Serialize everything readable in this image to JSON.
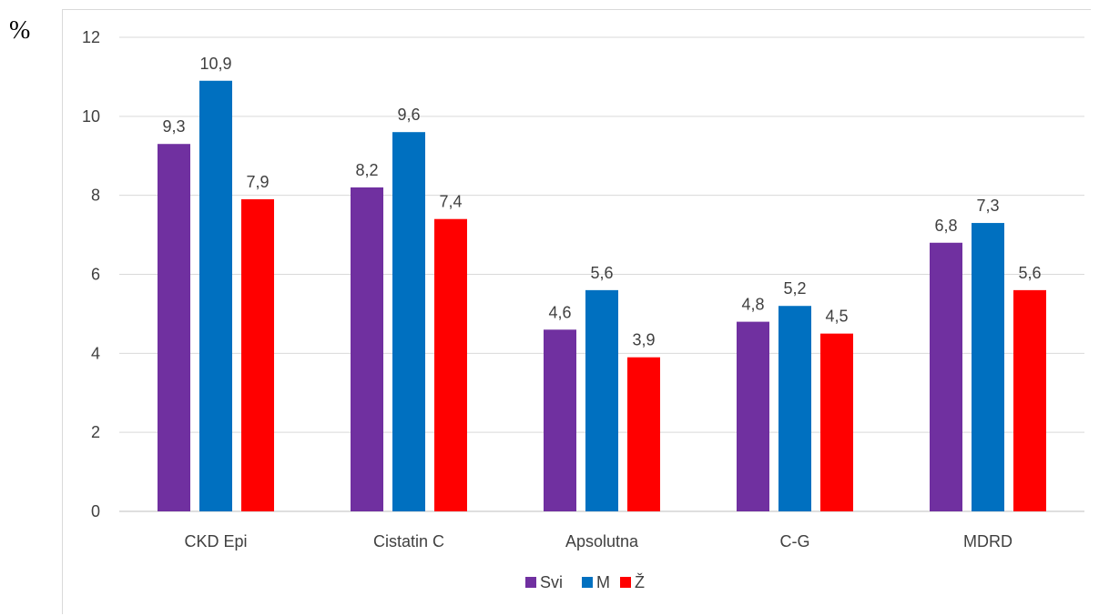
{
  "unit_label": "%",
  "chart_data": {
    "type": "bar",
    "title": "",
    "xlabel": "",
    "ylabel": "%",
    "ylim": [
      0,
      12
    ],
    "yticks": [
      0,
      2,
      4,
      6,
      8,
      10,
      12
    ],
    "grid": true,
    "legend_position": "bottom",
    "categories": [
      "CKD Epi",
      "Cistatin C",
      "Apsolutna",
      "C-G",
      "MDRD"
    ],
    "series": [
      {
        "name": "Svi",
        "color": "#7030a0",
        "values": [
          9.3,
          8.2,
          4.6,
          4.8,
          6.8
        ],
        "labels": [
          "9,3",
          "8,2",
          "4,6",
          "4,8",
          "6,8"
        ]
      },
      {
        "name": "M",
        "color": "#0070c0",
        "values": [
          10.9,
          9.6,
          5.6,
          5.2,
          7.3
        ],
        "labels": [
          "10,9",
          "9,6",
          "5,6",
          "5,2",
          "7,3"
        ]
      },
      {
        "name": "Ž",
        "color": "#ff0000",
        "values": [
          7.9,
          7.4,
          3.9,
          4.5,
          5.6
        ],
        "labels": [
          "7,9",
          "7,4",
          "3,9",
          "4,5",
          "5,6"
        ]
      }
    ]
  }
}
